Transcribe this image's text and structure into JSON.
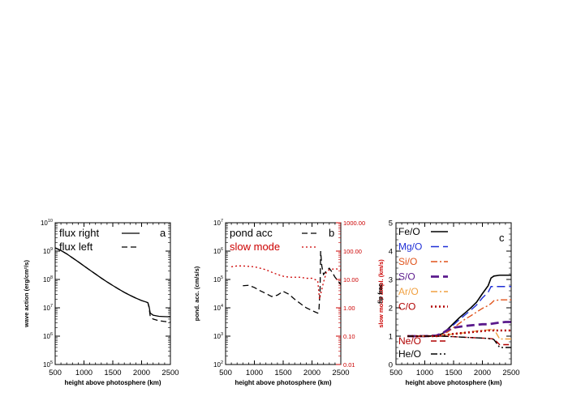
{
  "colors": {
    "axis": "#000000",
    "slow_mode": "#cc0000",
    "fe": "#000000",
    "mg": "#1f2fd6",
    "si": "#e0521a",
    "s": "#5a1a8c",
    "ar": "#f0a040",
    "c": "#b00000",
    "ne": "#b00000",
    "he": "#000000"
  },
  "chart_data": [
    {
      "type": "line",
      "panel_label": "a",
      "xlabel": "height above photosphere (km)",
      "ylabel": "wave action (erg/cm²/s)",
      "xlim": [
        500,
        2500
      ],
      "ylim": [
        100000,
        10000000000
      ],
      "yscale": "log",
      "xticks": [
        "500",
        "1000",
        "1500",
        "2000",
        "2500"
      ],
      "yticks": [
        {
          "value": 100000,
          "base": "10",
          "exp": "5"
        },
        {
          "value": 1000000,
          "base": "10",
          "exp": "6"
        },
        {
          "value": 10000000,
          "base": "10",
          "exp": "7"
        },
        {
          "value": 100000000,
          "base": "10",
          "exp": "8"
        },
        {
          "value": 1000000000,
          "base": "10",
          "exp": "9"
        },
        {
          "value": 10000000000,
          "base": "10",
          "exp": "10"
        }
      ],
      "series": [
        {
          "name": "flux right",
          "style": "solid",
          "color": "#000000",
          "x": [
            500,
            600,
            700,
            800,
            900,
            1000,
            1100,
            1200,
            1300,
            1400,
            1500,
            1600,
            1700,
            1800,
            1900,
            2000,
            2080,
            2110,
            2130,
            2150,
            2200,
            2300,
            2400,
            2500
          ],
          "y": [
            1300000000,
            1050000000,
            800000000,
            580000000,
            420000000,
            300000000,
            215000000,
            155000000,
            112000000,
            82000000,
            61000000,
            46000000,
            35000000,
            27500000,
            22000000,
            18000000,
            16000000,
            15000000,
            11000000,
            6500000,
            5500000,
            5000000,
            4900000,
            4800000
          ]
        },
        {
          "name": "flux left",
          "style": "dashed",
          "color": "#000000",
          "x": [
            500,
            600,
            700,
            800,
            900,
            1000,
            1100,
            1200,
            1300,
            1400,
            1500,
            1600,
            1700,
            1800,
            1900,
            2000,
            2080,
            2110,
            2130,
            2150,
            2200,
            2300,
            2400,
            2500
          ],
          "y": [
            1300000000,
            1050000000,
            800000000,
            580000000,
            420000000,
            300000000,
            215000000,
            155000000,
            112000000,
            82000000,
            61000000,
            46000000,
            35000000,
            27500000,
            22000000,
            18000000,
            16000000,
            15000000,
            10000000,
            5000000,
            4000000,
            3500000,
            3300000,
            3100000
          ]
        }
      ]
    },
    {
      "type": "line",
      "panel_label": "b",
      "xlabel": "height above photosphere (km)",
      "ylabel": "pond. acc. (cm/s/s)",
      "y2label": "slow mode ampl. (km/s)",
      "xlim": [
        500,
        2500
      ],
      "ylim": [
        100,
        10000000
      ],
      "yscale": "log",
      "y2lim": [
        0.01,
        1000
      ],
      "y2scale": "log",
      "xticks": [
        "500",
        "1000",
        "1500",
        "2000",
        "2500"
      ],
      "yticks": [
        {
          "value": 100,
          "base": "10",
          "exp": "2"
        },
        {
          "value": 1000,
          "base": "10",
          "exp": "3"
        },
        {
          "value": 10000,
          "base": "10",
          "exp": "4"
        },
        {
          "value": 100000,
          "base": "10",
          "exp": "5"
        },
        {
          "value": 1000000,
          "base": "10",
          "exp": "6"
        },
        {
          "value": 10000000,
          "base": "10",
          "exp": "7"
        }
      ],
      "y2ticks": [
        {
          "value": 0.01,
          "label": "0.01"
        },
        {
          "value": 0.1,
          "label": "0.10"
        },
        {
          "value": 1,
          "label": "1.00"
        },
        {
          "value": 10,
          "label": "10.00"
        },
        {
          "value": 100,
          "label": "100.00"
        },
        {
          "value": 1000,
          "label": "1000.00"
        }
      ],
      "series": [
        {
          "name": "pond acc",
          "style": "dashed",
          "color": "#000000",
          "axis": "left",
          "x": [
            800,
            900,
            1000,
            1100,
            1200,
            1300,
            1400,
            1500,
            1600,
            1700,
            1800,
            1900,
            2000,
            2050,
            2100,
            2120,
            2140,
            2150,
            2170,
            2200,
            2250,
            2300,
            2350,
            2400,
            2450,
            2500
          ],
          "y": [
            60000,
            62000,
            52000,
            40000,
            32000,
            25000,
            28000,
            38000,
            30000,
            20000,
            14000,
            10000,
            8000,
            7200,
            6500,
            8000,
            40000,
            1000000,
            300000,
            150000,
            200000,
            250000,
            180000,
            120000,
            90000,
            65000
          ]
        },
        {
          "name": "slow mode",
          "style": "dotted",
          "color": "#cc0000",
          "axis": "right",
          "x": [
            600,
            700,
            800,
            900,
            1000,
            1100,
            1200,
            1300,
            1400,
            1500,
            1600,
            1700,
            1800,
            1900,
            2000,
            2050,
            2100,
            2130,
            2150,
            2200,
            2250,
            2300,
            2400,
            2500
          ],
          "y": [
            28,
            30,
            30,
            29,
            28,
            25,
            22,
            18,
            15,
            13,
            12,
            12,
            12,
            11,
            11,
            10,
            9,
            2,
            3,
            8,
            18,
            22,
            24,
            22
          ]
        }
      ]
    },
    {
      "type": "line",
      "panel_label": "c",
      "xlabel": "height above photosphere (km)",
      "ylabel": "fip frac",
      "xlim": [
        500,
        2500
      ],
      "ylim": [
        0,
        5
      ],
      "yscale": "linear",
      "xticks": [
        "500",
        "1000",
        "1500",
        "2000",
        "2500"
      ],
      "yticks": [
        {
          "value": 0,
          "label": "0"
        },
        {
          "value": 1,
          "label": "1"
        },
        {
          "value": 2,
          "label": "2"
        },
        {
          "value": 3,
          "label": "3"
        },
        {
          "value": 4,
          "label": "4"
        },
        {
          "value": 5,
          "label": "5"
        }
      ],
      "series": [
        {
          "name": "Fe/O",
          "style": "solid",
          "color": "#000000",
          "width": 1.6,
          "x": [
            700,
            1000,
            1200,
            1300,
            1400,
            1500,
            1600,
            1700,
            1800,
            1900,
            2000,
            2100,
            2150,
            2200,
            2300,
            2400,
            2500
          ],
          "y": [
            1.0,
            1.0,
            1.02,
            1.08,
            1.25,
            1.45,
            1.65,
            1.82,
            2.0,
            2.2,
            2.5,
            2.78,
            3.05,
            3.12,
            3.15,
            3.15,
            3.15
          ]
        },
        {
          "name": "Mg/O",
          "style": "longdash",
          "color": "#1f2fd6",
          "width": 1.4,
          "x": [
            700,
            1000,
            1200,
            1300,
            1400,
            1500,
            1600,
            1700,
            1800,
            1900,
            2000,
            2100,
            2150,
            2200,
            2300,
            2400,
            2500
          ],
          "y": [
            1.0,
            1.0,
            1.02,
            1.07,
            1.22,
            1.4,
            1.58,
            1.75,
            1.92,
            2.1,
            2.35,
            2.55,
            2.75,
            2.75,
            2.75,
            2.75,
            2.75
          ]
        },
        {
          "name": "Si/O",
          "style": "dashdot",
          "color": "#e0521a",
          "width": 1.4,
          "x": [
            700,
            1000,
            1200,
            1300,
            1400,
            1500,
            1600,
            1700,
            1800,
            1900,
            2000,
            2100,
            2150,
            2200,
            2300,
            2400,
            2500
          ],
          "y": [
            1.0,
            1.0,
            1.01,
            1.05,
            1.15,
            1.3,
            1.45,
            1.6,
            1.72,
            1.85,
            1.98,
            2.08,
            2.15,
            2.25,
            2.28,
            2.28,
            2.28
          ]
        },
        {
          "name": "S/O",
          "style": "longdash",
          "color": "#5a1a8c",
          "width": 2.8,
          "x": [
            700,
            1000,
            1200,
            1300,
            1400,
            1500,
            1600,
            1700,
            1800,
            1900,
            2000,
            2100,
            2200,
            2300,
            2400,
            2500
          ],
          "y": [
            1.0,
            1.0,
            1.02,
            1.1,
            1.22,
            1.3,
            1.33,
            1.36,
            1.38,
            1.4,
            1.42,
            1.42,
            1.45,
            1.48,
            1.5,
            1.5
          ]
        },
        {
          "name": "Ar/O",
          "style": "dashdot",
          "color": "#f0a040",
          "width": 1.4,
          "x": [
            700,
            1000,
            1200,
            1300,
            1400,
            1500,
            1600,
            1700,
            1800,
            1900,
            2000,
            2100,
            2200,
            2300,
            2400,
            2500
          ],
          "y": [
            1.0,
            1.0,
            1.0,
            1.02,
            1.05,
            1.08,
            1.1,
            1.12,
            1.15,
            1.18,
            1.2,
            1.22,
            1.25,
            0.9,
            0.9,
            0.9
          ]
        },
        {
          "name": "C/O",
          "style": "dotted",
          "color": "#b00000",
          "width": 2.6,
          "x": [
            700,
            1000,
            1200,
            1300,
            1400,
            1500,
            1600,
            1700,
            1800,
            1900,
            2000,
            2100,
            2200,
            2300,
            2400,
            2500
          ],
          "y": [
            1.0,
            1.0,
            1.0,
            1.02,
            1.05,
            1.08,
            1.1,
            1.12,
            1.14,
            1.16,
            1.18,
            1.2,
            1.2,
            1.2,
            1.2,
            1.2
          ]
        },
        {
          "name": "Ne/O",
          "style": "dashed",
          "color": "#b00000",
          "width": 1.4,
          "x": [
            700,
            1000,
            1200,
            1300,
            1400,
            1500,
            1600,
            1700,
            1800,
            1900,
            2000,
            2100,
            2200,
            2300,
            2400,
            2500
          ],
          "y": [
            1.0,
            1.0,
            1.0,
            1.0,
            0.99,
            0.98,
            0.97,
            0.96,
            0.95,
            0.94,
            0.93,
            0.92,
            0.9,
            0.7,
            0.7,
            0.7
          ]
        },
        {
          "name": "He/O",
          "style": "dashdotdot",
          "color": "#000000",
          "width": 1.4,
          "x": [
            700,
            1000,
            1200,
            1300,
            1400,
            1500,
            1600,
            1700,
            1800,
            1900,
            2000,
            2100,
            2200,
            2300,
            2400,
            2500
          ],
          "y": [
            1.0,
            1.0,
            1.0,
            1.0,
            0.99,
            0.98,
            0.97,
            0.96,
            0.95,
            0.94,
            0.93,
            0.92,
            0.88,
            0.6,
            0.6,
            0.6
          ]
        }
      ]
    }
  ]
}
